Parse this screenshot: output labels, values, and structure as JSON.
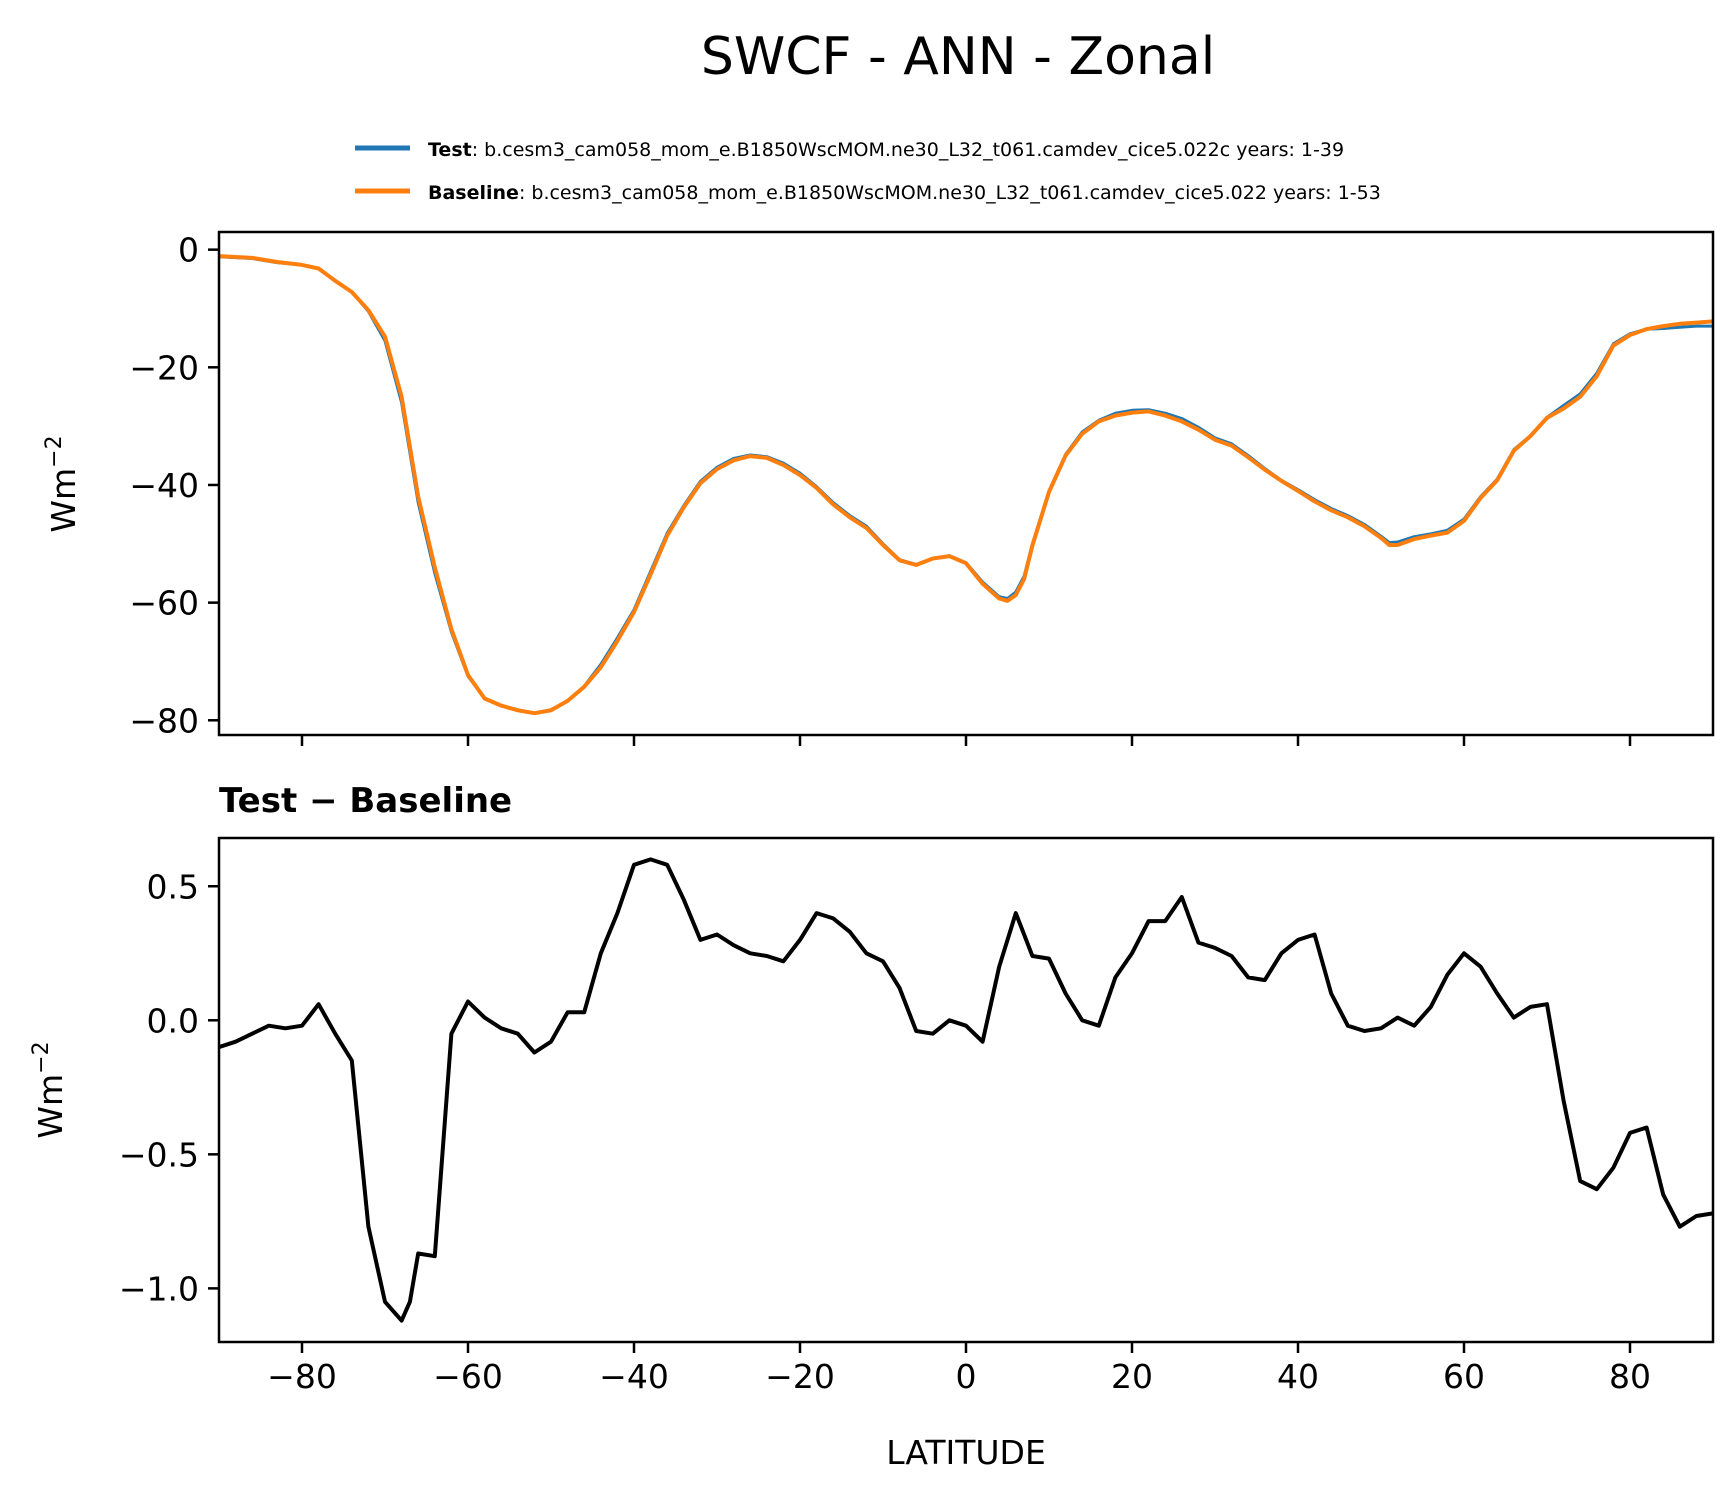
{
  "title": "SWCF - ANN - Zonal",
  "colors": {
    "test": "#1f77b4",
    "baseline": "#ff7f0e",
    "diff": "#000000"
  },
  "legend": {
    "test_name": "Test",
    "test_case": "b.cesm3_cam058_mom_e.B1850WscMOM.ne30_L32_t061.camdev_cice5.022c",
    "test_years": "years: 1-39",
    "baseline_name": "Baseline",
    "baseline_case": "b.cesm3_cam058_mom_e.B1850WscMOM.ne30_L32_t061.camdev_cice5.022",
    "baseline_years": "years: 1-53"
  },
  "chart_data": [
    {
      "type": "line",
      "panel": "top",
      "title": "",
      "xlabel": "",
      "ylabel": "Wm",
      "ylabel_sup": "−2",
      "xlim": [
        -90,
        90
      ],
      "ylim": [
        -82.5,
        3
      ],
      "xticks": [
        -80,
        -60,
        -40,
        -20,
        0,
        20,
        40,
        60,
        80
      ],
      "xtick_labels_shown": false,
      "yticks": [
        0,
        -20,
        -40,
        -60,
        -80
      ],
      "ytick_labels": [
        "0",
        "−20",
        "−40",
        "−60",
        "−80"
      ],
      "x": [
        -90,
        -86,
        -83,
        -80,
        -78,
        -76,
        -74,
        -72,
        -70,
        -68,
        -66,
        -64,
        -62,
        -60,
        -58,
        -56,
        -54,
        -52,
        -50,
        -48,
        -46,
        -44,
        -42,
        -40,
        -38,
        -36,
        -34,
        -32,
        -30,
        -28,
        -26,
        -24,
        -22,
        -20,
        -18,
        -16,
        -14,
        -12,
        -10,
        -8,
        -6,
        -4,
        -2,
        0,
        2,
        4,
        5,
        6,
        7,
        8,
        10,
        12,
        14,
        16,
        18,
        20,
        22,
        24,
        26,
        28,
        30,
        32,
        34,
        36,
        38,
        40,
        42,
        44,
        46,
        48,
        50,
        51,
        52,
        54,
        56,
        58,
        60,
        62,
        64,
        66,
        68,
        70,
        72,
        74,
        76,
        78,
        80,
        82,
        84,
        86,
        88,
        90
      ],
      "series": [
        {
          "name": "Test",
          "values": [
            -1.2,
            -1.5,
            -2.2,
            -2.6,
            -3.2,
            -5.2,
            -7.2,
            -10.5,
            -15.5,
            -26.0,
            -43.0,
            -55.0,
            -65.0,
            -72.5,
            -76.3,
            -77.5,
            -78.2,
            -78.8,
            -78.2,
            -76.7,
            -74.2,
            -70.5,
            -66.0,
            -61.2,
            -54.7,
            -48.2,
            -43.5,
            -39.4,
            -37.0,
            -35.5,
            -34.9,
            -35.2,
            -36.3,
            -38.0,
            -40.3,
            -43.0,
            -45.2,
            -47.0,
            -50.0,
            -52.7,
            -53.5,
            -52.5,
            -52.0,
            -53.2,
            -56.5,
            -59.0,
            -59.3,
            -58.2,
            -55.5,
            -50.0,
            -41.0,
            -34.8,
            -31.0,
            -29.0,
            -27.8,
            -27.3,
            -27.2,
            -27.8,
            -28.7,
            -30.2,
            -32.0,
            -33.0,
            -35.0,
            -37.2,
            -39.2,
            -40.8,
            -42.5,
            -44.0,
            -45.2,
            -46.7,
            -48.7,
            -49.8,
            -49.7,
            -48.8,
            -48.3,
            -47.7,
            -45.8,
            -42.0,
            -39.0,
            -34.0,
            -31.6,
            -28.5,
            -26.5,
            -24.5,
            -21.0,
            -16.0,
            -14.3,
            -13.5,
            -13.4,
            -13.2,
            -13.0,
            -13.0
          ]
        },
        {
          "name": "Baseline",
          "values": [
            -1.1,
            -1.4,
            -2.1,
            -2.6,
            -3.2,
            -5.3,
            -7.2,
            -10.3,
            -14.8,
            -25.0,
            -42.0,
            -54.0,
            -64.5,
            -72.3,
            -76.3,
            -77.5,
            -78.3,
            -78.8,
            -78.3,
            -76.7,
            -74.3,
            -71.0,
            -66.5,
            -61.6,
            -55.2,
            -48.6,
            -43.8,
            -39.7,
            -37.3,
            -35.8,
            -35.1,
            -35.4,
            -36.6,
            -38.3,
            -40.5,
            -43.3,
            -45.5,
            -47.3,
            -50.2,
            -52.8,
            -53.6,
            -52.5,
            -52.1,
            -53.3,
            -56.8,
            -59.3,
            -59.7,
            -58.7,
            -56.0,
            -50.3,
            -41.2,
            -35.0,
            -31.3,
            -29.2,
            -28.2,
            -27.7,
            -27.5,
            -28.2,
            -29.2,
            -30.6,
            -32.3,
            -33.3,
            -35.3,
            -37.4,
            -39.3,
            -41.0,
            -42.8,
            -44.3,
            -45.5,
            -47.0,
            -49.0,
            -50.2,
            -50.2,
            -49.2,
            -48.6,
            -48.1,
            -46.1,
            -42.2,
            -39.2,
            -34.2,
            -31.7,
            -28.6,
            -27.0,
            -25.0,
            -21.5,
            -16.3,
            -14.5,
            -13.5,
            -13.0,
            -12.6,
            -12.4,
            -12.2
          ]
        }
      ]
    },
    {
      "type": "line",
      "panel": "bottom",
      "title": "Test − Baseline",
      "xlabel": "LATITUDE",
      "ylabel": "Wm",
      "ylabel_sup": "−2",
      "xlim": [
        -90,
        90
      ],
      "ylim": [
        -1.2,
        0.68
      ],
      "xticks": [
        -80,
        -60,
        -40,
        -20,
        0,
        20,
        40,
        60,
        80
      ],
      "xtick_labels": [
        "−80",
        "−60",
        "−40",
        "−20",
        "0",
        "20",
        "40",
        "60",
        "80"
      ],
      "yticks": [
        0.5,
        0.0,
        -0.5,
        -1.0
      ],
      "ytick_labels": [
        "0.5",
        "0.0",
        "−0.5",
        "−1.0"
      ],
      "x": [
        -90,
        -88,
        -86,
        -84,
        -82,
        -80,
        -78,
        -76,
        -74,
        -72,
        -70,
        -68,
        -67,
        -66,
        -64,
        -62,
        -60,
        -58,
        -56,
        -54,
        -52,
        -50,
        -48,
        -46,
        -44,
        -42,
        -40,
        -38,
        -36,
        -34,
        -32,
        -30,
        -28,
        -26,
        -24,
        -22,
        -20,
        -18,
        -16,
        -14,
        -12,
        -10,
        -8,
        -6,
        -4,
        -2,
        0,
        2,
        4,
        6,
        8,
        10,
        12,
        14,
        16,
        18,
        20,
        22,
        24,
        26,
        28,
        30,
        32,
        34,
        36,
        38,
        40,
        42,
        44,
        46,
        48,
        50,
        52,
        54,
        56,
        58,
        60,
        62,
        64,
        66,
        68,
        70,
        72,
        74,
        76,
        78,
        80,
        82,
        84,
        86,
        88,
        90
      ],
      "series": [
        {
          "name": "Test − Baseline",
          "values": [
            -0.1,
            -0.08,
            -0.05,
            -0.02,
            -0.03,
            -0.02,
            0.06,
            -0.05,
            -0.15,
            -0.77,
            -1.05,
            -1.12,
            -1.05,
            -0.87,
            -0.88,
            -0.05,
            0.07,
            0.01,
            -0.03,
            -0.05,
            -0.12,
            -0.08,
            0.03,
            0.03,
            0.25,
            0.4,
            0.58,
            0.6,
            0.58,
            0.45,
            0.3,
            0.32,
            0.28,
            0.25,
            0.24,
            0.22,
            0.3,
            0.4,
            0.38,
            0.33,
            0.25,
            0.22,
            0.12,
            -0.04,
            -0.05,
            0.0,
            -0.02,
            -0.08,
            0.2,
            0.4,
            0.24,
            0.23,
            0.1,
            0.0,
            -0.02,
            0.16,
            0.25,
            0.37,
            0.37,
            0.46,
            0.29,
            0.27,
            0.24,
            0.16,
            0.15,
            0.25,
            0.3,
            0.32,
            0.1,
            -0.02,
            -0.04,
            -0.03,
            0.01,
            -0.02,
            0.05,
            0.17,
            0.25,
            0.2,
            0.1,
            0.01,
            0.05,
            0.06,
            -0.3,
            -0.6,
            -0.63,
            -0.55,
            -0.42,
            -0.4,
            -0.65,
            -0.77,
            -0.73,
            -0.72
          ]
        }
      ]
    }
  ]
}
